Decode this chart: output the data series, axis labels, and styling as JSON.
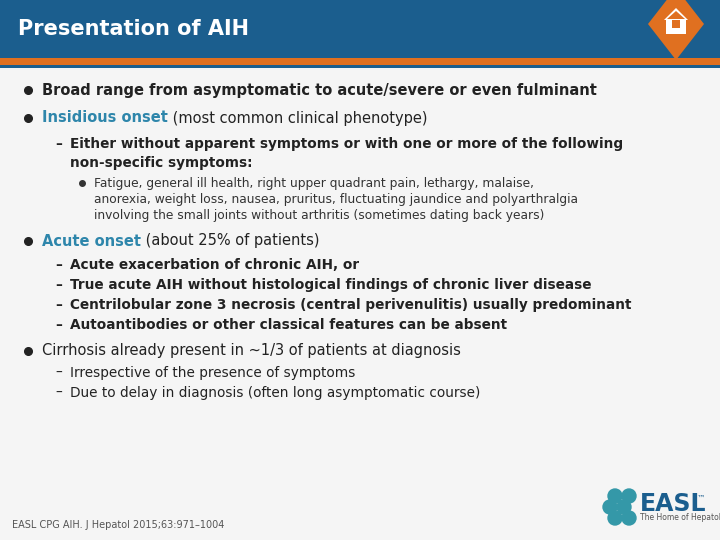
{
  "title": "Presentation of AIH",
  "title_bg_color": "#1B5E8E",
  "title_text_color": "#FFFFFF",
  "accent_color": "#E07020",
  "insidious_color": "#2E86AB",
  "acute_color": "#2E86AB",
  "body_bg_color": "#F5F5F5",
  "dark_blue": "#1B5E8E",
  "teal_blue": "#3498A8",
  "text_dark": "#222222",
  "text_mid": "#333333",
  "footer_text": "EASL CPG AIH. J Hepatol 2015;63:971–1004",
  "bullet1": "Broad range from asymptomatic to acute/severe or even fulminant",
  "bullet2_colored": "Insidious onset",
  "bullet2_rest": " (most common clinical phenotype)",
  "sub1_line1": "Either without apparent symptoms or with one or more of the following",
  "sub1_line2": "non-specific symptoms:",
  "subsub1_line1": "Fatigue, general ill health, right upper quadrant pain, lethargy, malaise,",
  "subsub1_line2": "anorexia, weight loss, nausea, pruritus, fluctuating jaundice and polyarthralgia",
  "subsub1_line3": "involving the small joints without arthritis (sometimes dating back years)",
  "bullet3_colored": "Acute onset",
  "bullet3_rest": " (about 25% of patients)",
  "sub2a": "Acute exacerbation of chronic AIH, or",
  "sub2b": "True acute AIH without histological findings of chronic liver disease",
  "sub2c": "Centrilobular zone 3 necrosis (central perivenulitis) usually predominant",
  "sub2d": "Autoantibodies or other classical features can be absent",
  "bullet4": "Cirrhosis already present in ~1/3 of patients at diagnosis",
  "sub3a": "Irrespective of the presence of symptoms",
  "sub3b": "Due to delay in diagnosis (often long asymptomatic course)",
  "footer": "EASL CPG AIH. J Hepatol 2015;63:971–1004"
}
